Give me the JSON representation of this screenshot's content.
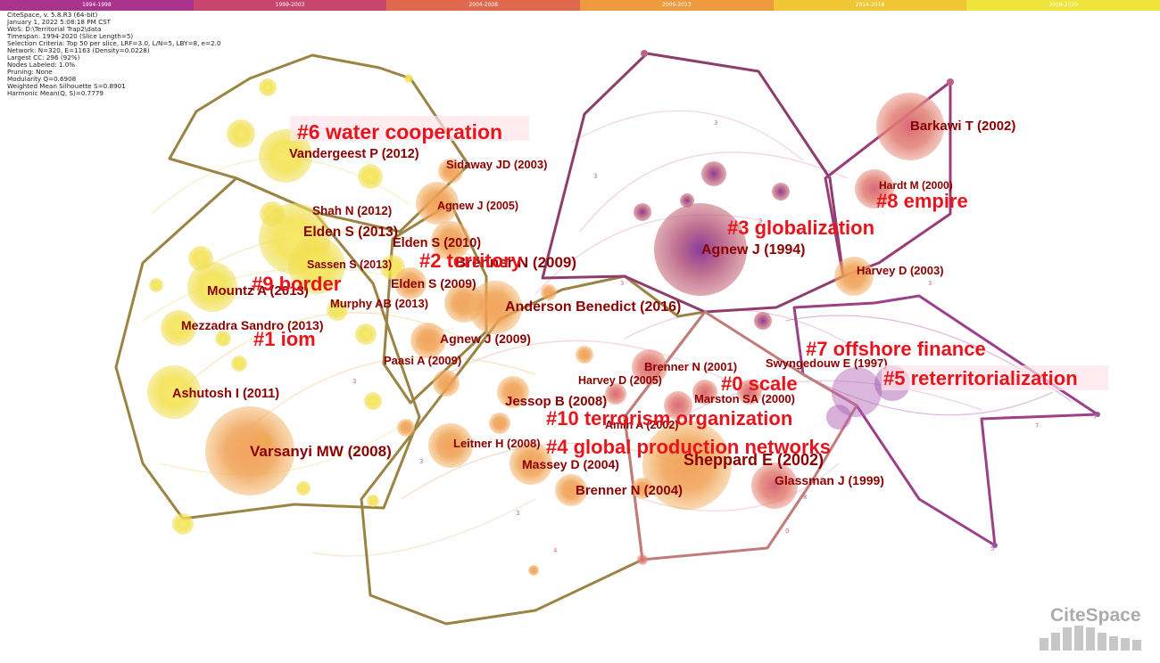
{
  "timebar": [
    {
      "label": "1994-1998",
      "color": "#a9348e"
    },
    {
      "label": "1999-2003",
      "color": "#c8466c"
    },
    {
      "label": "2004-2008",
      "color": "#e0684d"
    },
    {
      "label": "2009-2013",
      "color": "#ee9a3f"
    },
    {
      "label": "2014-2018",
      "color": "#f1c634"
    },
    {
      "label": "2019-2020",
      "color": "#efe43a"
    }
  ],
  "info": [
    "CiteSpace, v. 5.8.R3 (64-bit)",
    "January 1, 2022 5:08:18 PM CST",
    "WoS: D:\\Territorial Trap2\\data",
    "Timespan: 1994-2020 (Slice Length=5)",
    "Selection Criteria: Top 50 per slice, LRF=3.0, L/N=5, LBY=8, e=2.0",
    "Network: N=320, E=1163 (Density=0.0228)",
    "Largest CC: 296 (92%)",
    "Nodes Labeled: 1.0%",
    "Pruning: None",
    "Modularity Q=0.6908",
    "Weighted Mean Silhouette S=0.8901",
    "Harmonic Mean(Q, S)=0.7779"
  ],
  "references": [
    {
      "text": "Vandergeest P (2012)"
    },
    {
      "text": "Sidaway JD (2003)"
    },
    {
      "text": "Shah N (2012)"
    },
    {
      "text": "Agnew J (2005)"
    },
    {
      "text": "Elden S (2013)"
    },
    {
      "text": "Elden S (2010)"
    },
    {
      "text": "Sassen S (2013)"
    },
    {
      "text": "Brenner N (2009)"
    },
    {
      "text": "Elden S (2009)"
    },
    {
      "text": "Mountz A (2013)"
    },
    {
      "text": "Murphy AB (2013)"
    },
    {
      "text": "Anderson Benedict (2016)"
    },
    {
      "text": "Mezzadra Sandro (2013)"
    },
    {
      "text": "Agnew J (2009)"
    },
    {
      "text": "Paasi A (2009)"
    },
    {
      "text": "Ashutosh I (2011)"
    },
    {
      "text": "Varsanyi MW (2008)"
    },
    {
      "text": "Jessop B (2008)"
    },
    {
      "text": "Leitner H (2008)"
    },
    {
      "text": "Massey D (2004)"
    },
    {
      "text": "Brenner N (2004)"
    },
    {
      "text": "Harvey D (2005)"
    },
    {
      "text": "Brenner N (2001)"
    },
    {
      "text": "Marston SA (2000)"
    },
    {
      "text": "Amin A (2002)"
    },
    {
      "text": "Sheppard E (2002)"
    },
    {
      "text": "Glassman J (1999)"
    },
    {
      "text": "Swyngedouw E (1997)"
    },
    {
      "text": "Agnew J (1994)"
    },
    {
      "text": "Harvey D (2003)"
    },
    {
      "text": "Barkawi T (2002)"
    },
    {
      "text": "Hardt M (2000)"
    }
  ],
  "clusters": [
    {
      "text": "#6 water cooperation"
    },
    {
      "text": "#2 territory"
    },
    {
      "text": "#9 border"
    },
    {
      "text": "#1 iom"
    },
    {
      "text": "#10 terrorism organization"
    },
    {
      "text": "#4 global production networks"
    },
    {
      "text": "#3 globalization"
    },
    {
      "text": "#8 empire"
    },
    {
      "text": "#7 offshore finance"
    },
    {
      "text": "#0 scale"
    },
    {
      "text": "#5 reterritorialization"
    }
  ],
  "watermark": "CiteSpace"
}
